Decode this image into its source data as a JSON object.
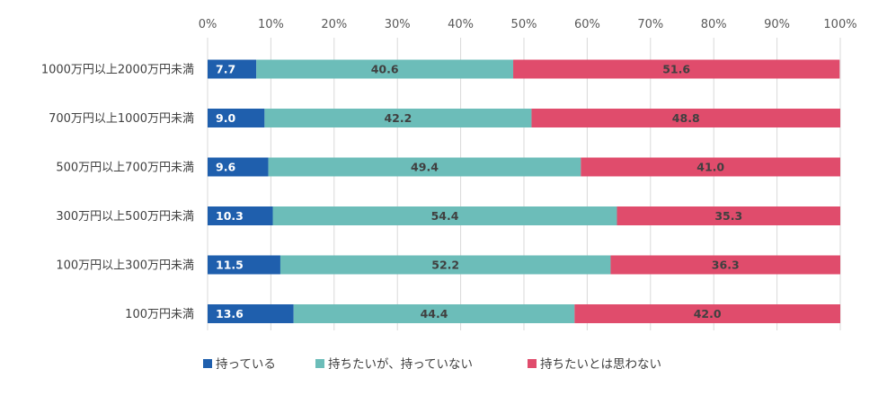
{
  "chart_data": {
    "type": "bar",
    "orientation": "horizontal",
    "stacked": true,
    "percent": true,
    "xlim": [
      0,
      100
    ],
    "x_ticks": [
      "0%",
      "10%",
      "20%",
      "30%",
      "40%",
      "50%",
      "60%",
      "70%",
      "80%",
      "90%",
      "100%"
    ],
    "categories": [
      "1000万円以上2000万円未満",
      "700万円以上1000万円未満",
      "500万円以上700万円未満",
      "300万円以上500万円未満",
      "100万円以上300万円未満",
      "100万円未満"
    ],
    "series": [
      {
        "name": "持っている",
        "color": "#1f5fad",
        "label_color": "#ffffff",
        "values": [
          7.7,
          9.0,
          9.6,
          10.3,
          11.5,
          13.6
        ],
        "labels": [
          "7.7",
          "9.0",
          "9.6",
          "10.3",
          "11.5",
          "13.6"
        ]
      },
      {
        "name": "持ちたいが、持っていない",
        "color": "#6cbdb9",
        "label_color": "#404040",
        "values": [
          40.6,
          42.2,
          49.4,
          54.4,
          52.2,
          44.4
        ],
        "labels": [
          "40.6",
          "42.2",
          "49.4",
          "54.4",
          "52.2",
          "44.4"
        ]
      },
      {
        "name": "持ちたいとは思わない",
        "color": "#e04c6c",
        "label_color": "#404040",
        "values": [
          51.6,
          48.8,
          41.0,
          35.3,
          36.3,
          42.0
        ],
        "labels": [
          "51.6",
          "48.8",
          "41.0",
          "35.3",
          "36.3",
          "42.0"
        ]
      }
    ],
    "grid": true,
    "legend_position": "bottom-left"
  }
}
